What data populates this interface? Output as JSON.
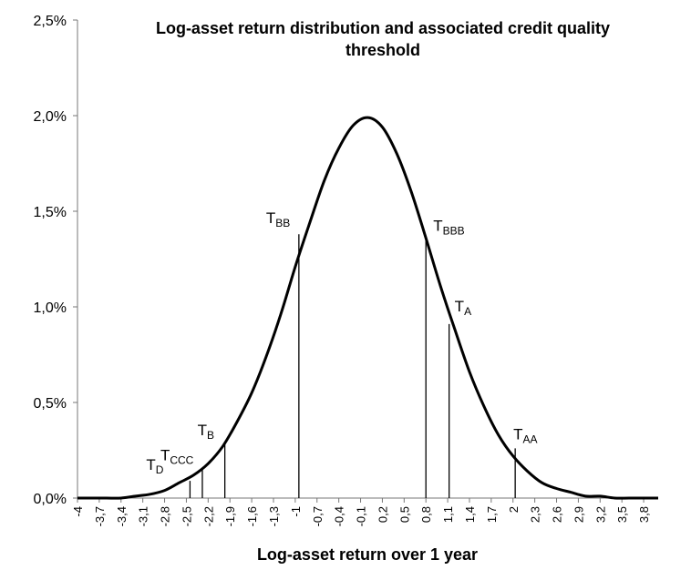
{
  "chart_data": {
    "type": "line",
    "title_line1": "Log-asset return distribution and associated  credit quality",
    "title_line2": "threshold",
    "xlabel": "Log-asset return over 1 year",
    "ylabel": "",
    "xlim": [
      -4,
      4
    ],
    "ylim": [
      0,
      0.025
    ],
    "x_ticks": [
      -4,
      -3.7,
      -3.4,
      -3.1,
      -2.8,
      -2.5,
      -2.2,
      -1.9,
      -1.6,
      -1.3,
      -1,
      -0.7,
      -0.4,
      -0.1,
      0.2,
      0.5,
      0.8,
      1.1,
      1.4,
      1.7,
      2,
      2.3,
      2.6,
      2.9,
      3.2,
      3.5,
      3.8
    ],
    "x_tick_labels": [
      "-4",
      "-3,7",
      "-3,4",
      "-3,1",
      "-2,8",
      "-2,5",
      "-2,2",
      "-1,9",
      "-1,6",
      "-1,3",
      "-1",
      "-0,7",
      "-0,4",
      "-0,1",
      "0,2",
      "0,5",
      "0,8",
      "1,1",
      "1,4",
      "1,7",
      "2",
      "2,3",
      "2,6",
      "2,9",
      "3,2",
      "3,5",
      "3,8"
    ],
    "y_ticks": [
      0,
      0.005,
      0.01,
      0.015,
      0.02,
      0.025
    ],
    "y_tick_labels": [
      "0,0%",
      "0,5%",
      "1,0%",
      "1,5%",
      "2,0%",
      "2,5%"
    ],
    "grid": false,
    "legend": "none",
    "curve_color": "#000000",
    "series": [
      {
        "x": [
          -4,
          -3.8,
          -3.6,
          -3.4,
          -3.2,
          -3.0,
          -2.8,
          -2.6,
          -2.4,
          -2.2,
          -2.0,
          -1.8,
          -1.6,
          -1.4,
          -1.2,
          -1.0,
          -0.8,
          -0.6,
          -0.4,
          -0.2,
          0.0,
          0.2,
          0.4,
          0.6,
          0.8,
          1.0,
          1.2,
          1.4,
          1.6,
          1.8,
          2.0,
          2.2,
          2.4,
          2.6,
          2.8,
          3.0,
          3.2,
          3.4,
          3.6,
          3.8,
          4.0
        ],
        "y": [
          0.0,
          0.0,
          0.0,
          0.0,
          0.0001,
          0.0002,
          0.0004,
          0.0008,
          0.0012,
          0.0018,
          0.0027,
          0.004,
          0.0055,
          0.0074,
          0.0096,
          0.0121,
          0.0144,
          0.0166,
          0.0183,
          0.0195,
          0.0199,
          0.0194,
          0.018,
          0.016,
          0.0136,
          0.0111,
          0.0088,
          0.0066,
          0.0048,
          0.0033,
          0.0022,
          0.0014,
          0.0008,
          0.0005,
          0.0003,
          0.0001,
          0.0001,
          0.0,
          0.0,
          0.0,
          0.0
        ]
      }
    ],
    "thresholds": [
      {
        "base": "T",
        "sub": "D",
        "x": -2.45,
        "y": 0.0009
      },
      {
        "base": "T",
        "sub": "CCC",
        "x": -2.28,
        "y": 0.0015
      },
      {
        "base": "T",
        "sub": "B",
        "x": -1.97,
        "y": 0.0028
      },
      {
        "base": "T",
        "sub": "BB",
        "x": -0.95,
        "y": 0.0138
      },
      {
        "base": "T",
        "sub": "BBB",
        "x": 0.8,
        "y": 0.0135
      },
      {
        "base": "T",
        "sub": "A",
        "x": 1.12,
        "y": 0.0091
      },
      {
        "base": "T",
        "sub": "AA",
        "x": 2.03,
        "y": 0.0026
      }
    ]
  }
}
